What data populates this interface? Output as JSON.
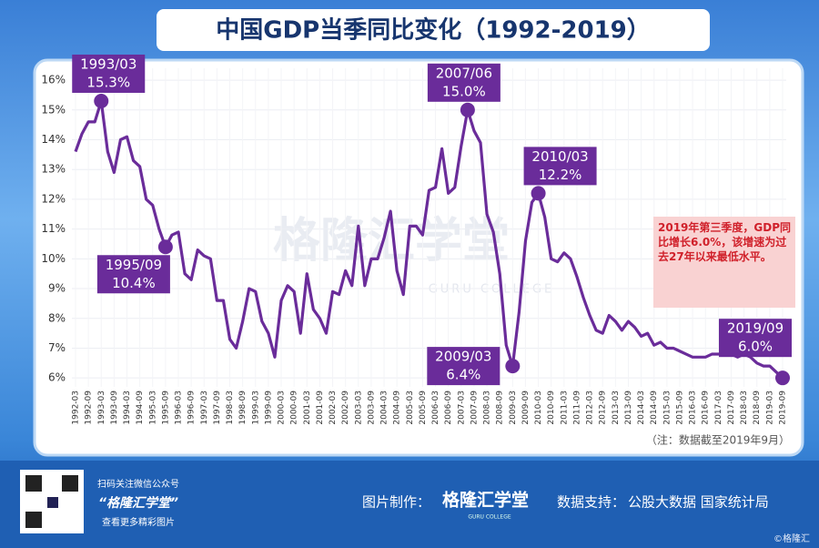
{
  "header": {
    "title": "中国GDP当季同比变化（1992-2019）"
  },
  "chart_data": {
    "type": "line",
    "categories": [
      "1992-03",
      null,
      "1992-09",
      null,
      "1993-03",
      null,
      "1993-09",
      null,
      "1994-03",
      null,
      "1994-09",
      null,
      "1995-03",
      null,
      "1995-09",
      null,
      "1996-03",
      null,
      "1996-09",
      null,
      "1997-03",
      null,
      "1997-09",
      null,
      "1998-03",
      null,
      "1998-09",
      null,
      "1999-03",
      null,
      "1999-09",
      null,
      "2000-03",
      null,
      "2000-09",
      null,
      "2001-03",
      null,
      "2001-09",
      null,
      "2002-03",
      null,
      "2002-09",
      null,
      "2003-03",
      null,
      "2003-09",
      null,
      "2004-03",
      null,
      "2004-09",
      null,
      "2005-03",
      null,
      "2005-09",
      null,
      "2006-03",
      null,
      "2006-09",
      null,
      "2007-03",
      null,
      "2007-09",
      null,
      "2008-03",
      null,
      "2008-09",
      null,
      "2009-03",
      null,
      "2009-09",
      null,
      "2010-03",
      null,
      "2010-09",
      null,
      "2011-03",
      null,
      "2011-09",
      null,
      "2012-03",
      null,
      "2012-09",
      null,
      "2013-03",
      null,
      "2013-09",
      null,
      "2014-03",
      null,
      "2014-09",
      null,
      "2015-03",
      null,
      "2015-09",
      null,
      "2016-03",
      null,
      "2016-09",
      null,
      "2017-03",
      null,
      "2017-09",
      null,
      "2018-03",
      null,
      "2018-09",
      null,
      "2019-03",
      null,
      "2019-09"
    ],
    "series": [
      {
        "color": "#6a2c9a",
        "values": [
          13.6,
          14.2,
          14.6,
          14.6,
          15.3,
          13.6,
          12.9,
          14.0,
          14.1,
          13.3,
          13.1,
          12.0,
          11.8,
          11.0,
          10.4,
          10.8,
          10.9,
          9.5,
          9.3,
          10.3,
          10.1,
          10.0,
          8.6,
          8.6,
          7.3,
          7.0,
          7.9,
          9.0,
          8.9,
          7.9,
          7.5,
          6.7,
          8.6,
          9.1,
          8.9,
          7.5,
          9.5,
          8.3,
          8.0,
          7.5,
          8.9,
          8.8,
          9.6,
          9.1,
          11.1,
          9.1,
          10.0,
          10.0,
          10.7,
          11.6,
          9.6,
          8.8,
          11.1,
          11.1,
          10.8,
          12.3,
          12.4,
          13.7,
          12.2,
          12.4,
          13.8,
          15.0,
          14.3,
          13.9,
          11.5,
          10.9,
          9.5,
          7.1,
          6.4,
          8.2,
          10.6,
          11.9,
          12.2,
          11.4,
          10.0,
          9.9,
          10.2,
          10.0,
          9.4,
          8.7,
          8.1,
          7.6,
          7.5,
          8.1,
          7.9,
          7.6,
          7.9,
          7.7,
          7.4,
          7.5,
          7.1,
          7.2,
          7.0,
          7.0,
          6.9,
          6.8,
          6.7,
          6.7,
          6.7,
          6.8,
          6.8,
          6.8,
          6.8,
          6.7,
          6.8,
          6.7,
          6.5,
          6.4,
          6.4,
          6.2,
          6.0
        ],
        "label_dates": [
          null,
          null,
          null,
          null,
          "1993/03",
          null,
          null,
          null,
          null,
          null,
          null,
          null,
          null,
          null,
          "1995/09",
          null,
          null,
          null,
          null,
          null,
          null,
          null,
          null,
          null,
          null,
          null,
          null,
          null,
          null,
          null,
          null,
          null,
          null,
          null,
          null,
          null,
          null,
          null,
          null,
          null,
          null,
          null,
          null,
          null,
          null,
          null,
          null,
          null,
          null,
          null,
          null,
          null,
          null,
          null,
          null,
          null,
          null,
          null,
          null,
          null,
          null,
          "2007/06",
          null,
          null,
          null,
          null,
          null,
          null,
          "2009/03",
          null,
          null,
          null,
          "2010/03",
          null,
          null,
          null,
          null,
          null,
          null,
          null,
          null,
          null,
          null,
          null,
          null,
          null,
          null,
          null,
          null,
          null,
          null,
          null,
          null,
          null,
          null,
          null,
          null,
          null,
          null,
          null,
          null,
          null,
          null,
          null,
          null,
          null,
          null,
          null,
          null,
          null,
          "2019/09"
        ],
        "value_labels": [
          null,
          null,
          null,
          null,
          "15.3%",
          null,
          null,
          null,
          null,
          null,
          null,
          null,
          null,
          null,
          "10.4%",
          null,
          null,
          null,
          null,
          null,
          null,
          null,
          null,
          null,
          null,
          null,
          null,
          null,
          null,
          null,
          null,
          null,
          null,
          null,
          null,
          null,
          null,
          null,
          null,
          null,
          null,
          null,
          null,
          null,
          null,
          null,
          null,
          null,
          null,
          null,
          null,
          null,
          null,
          null,
          null,
          null,
          null,
          null,
          null,
          null,
          null,
          "15.0%",
          null,
          null,
          null,
          null,
          null,
          null,
          "6.4%",
          null,
          null,
          null,
          "12.2%",
          null,
          null,
          null,
          null,
          null,
          null,
          null,
          null,
          null,
          null,
          null,
          null,
          null,
          null,
          null,
          null,
          null,
          null,
          null,
          null,
          null,
          null,
          null,
          null,
          null,
          null,
          null,
          null,
          null,
          null,
          null,
          null,
          null,
          null,
          null,
          null,
          null,
          "6.0%"
        ]
      }
    ],
    "ylim": [
      5.7,
      16.4
    ],
    "yticks": [
      {
        "value": 6,
        "label": "6%"
      },
      {
        "value": 7,
        "label": "7%"
      },
      {
        "value": 8,
        "label": "8%"
      },
      {
        "value": 9,
        "label": "9%"
      },
      {
        "value": 10,
        "label": "10%"
      },
      {
        "value": 11,
        "label": "11%"
      },
      {
        "value": 12,
        "label": "12%"
      },
      {
        "value": 13,
        "label": "13%"
      },
      {
        "value": 14,
        "label": "14%"
      },
      {
        "value": 15,
        "label": "15%"
      },
      {
        "value": 16,
        "label": "16%"
      }
    ],
    "grid": true,
    "note": "（注：数据截至2019年9月）",
    "callout": "2019年第三季度，GDP同比增长6.0%，该增速为过去27年以来最低水平。",
    "watermark": [
      "格隆汇学堂",
      "GURU COLLEGE"
    ]
  },
  "footer": {
    "qr_caption": [
      "扫码关注微信公众号",
      "“格隆汇学堂”",
      "查看更多精彩图片"
    ],
    "made_by_label": "图片制作：",
    "made_by": "格隆汇学堂",
    "made_by_sub": "GURU COLLEGE",
    "source_label": "数据支持：",
    "source": "公股大数据 国家统计局",
    "copyright": "©格隆汇"
  }
}
